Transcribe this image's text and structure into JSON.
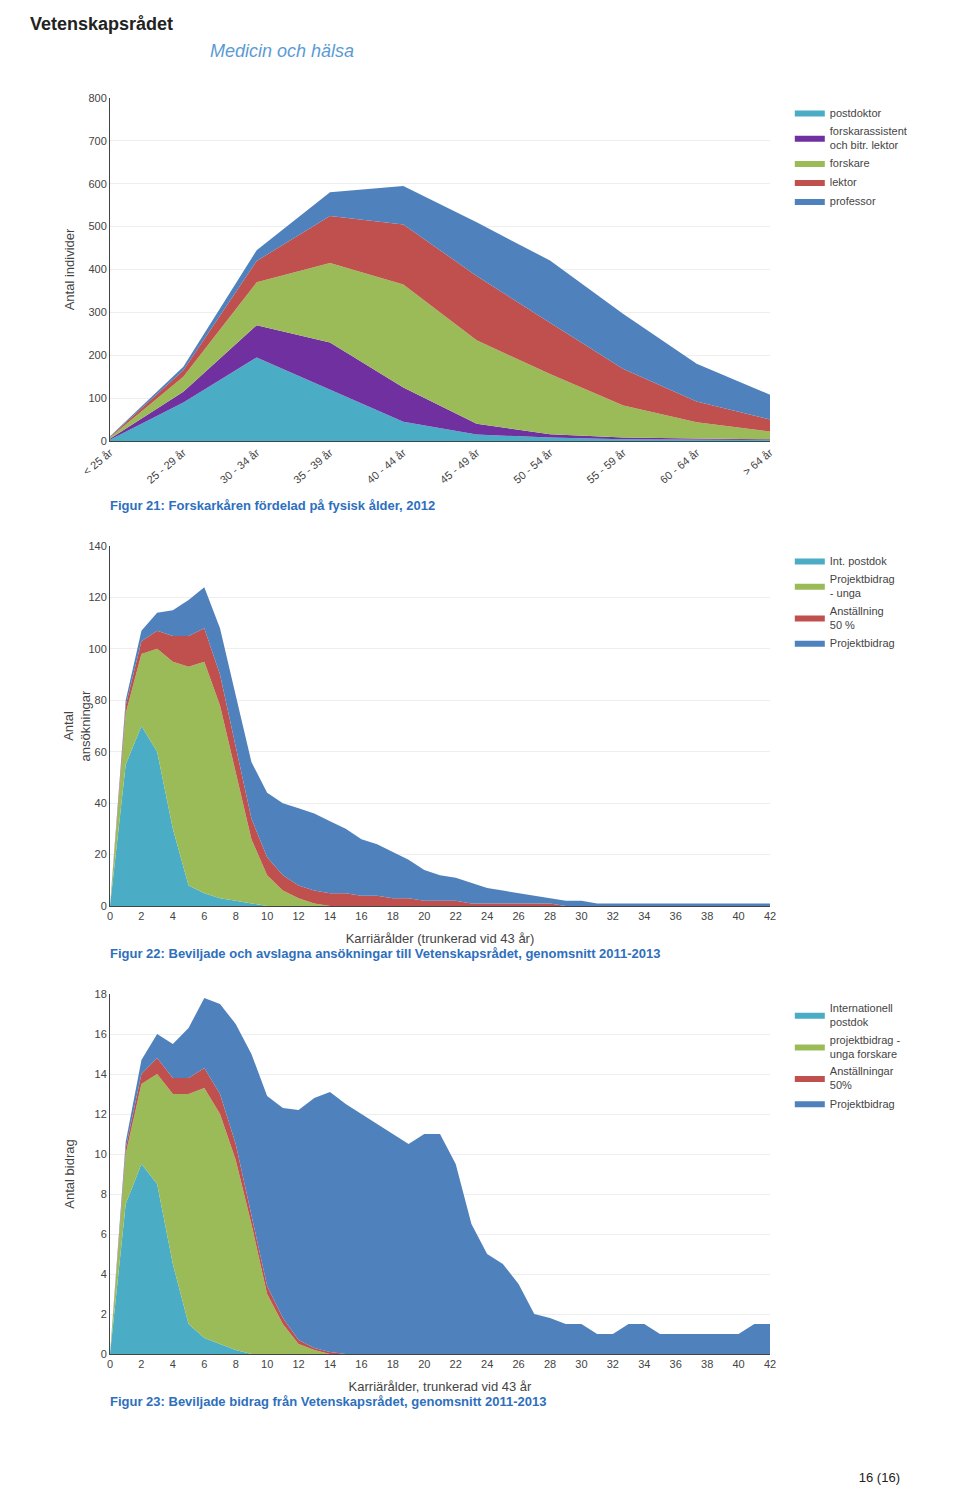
{
  "title": "Medicin och hälsa",
  "annotations": [
    "Vetenskapsrådet",
    "16 (16)"
  ],
  "chart_data": [
    {
      "type": "area",
      "stacked": true,
      "grid": true,
      "legend": "right",
      "title": "Figur 21: Forskarkåren fördelad på fysisk ålder, 2012",
      "ylabel": "Antal individer",
      "categories": [
        "< 25 år",
        "25 - 29 år",
        "30 - 34 år",
        "35 - 39 år",
        "40 - 44 år",
        "45 - 49 år",
        "50 - 54 år",
        "55 - 59 år",
        "60 - 64 år",
        "> 64 år"
      ],
      "ylim": [
        0,
        800
      ],
      "yticks": [
        0,
        100,
        200,
        300,
        400,
        500,
        600,
        700,
        800
      ],
      "series": [
        {
          "name": "postdoktor",
          "color": "#4BACC6",
          "values": [
            3,
            90,
            195,
            120,
            45,
            15,
            8,
            4,
            3,
            2
          ]
        },
        {
          "name": "forskarassistent\noch bitr. lektor",
          "color": "#7030A0",
          "values": [
            2,
            25,
            75,
            110,
            80,
            25,
            8,
            4,
            3,
            2
          ]
        },
        {
          "name": "forskare",
          "color": "#9BBB59",
          "values": [
            3,
            35,
            100,
            185,
            240,
            195,
            140,
            75,
            38,
            18
          ]
        },
        {
          "name": "lektor",
          "color": "#C0504D",
          "values": [
            2,
            15,
            50,
            110,
            140,
            150,
            120,
            85,
            48,
            28
          ]
        },
        {
          "name": "professor",
          "color": "#4F81BD",
          "values": [
            1,
            8,
            25,
            55,
            90,
            125,
            145,
            128,
            88,
            58
          ]
        }
      ]
    },
    {
      "type": "area",
      "stacked": true,
      "grid": true,
      "legend": "right",
      "title": "Figur 22: Beviljade och avslagna ansökningar till Vetenskapsrådet, genomsnitt 2011-2013",
      "ylabel": "Antal\nansökningar",
      "xlabel": "Karriärålder (trunkerad vid 43 år)",
      "x": [
        0,
        1,
        2,
        3,
        4,
        5,
        6,
        7,
        8,
        9,
        10,
        11,
        12,
        13,
        14,
        15,
        16,
        17,
        18,
        19,
        20,
        21,
        22,
        23,
        24,
        25,
        26,
        27,
        28,
        29,
        30,
        31,
        32,
        33,
        34,
        35,
        36,
        37,
        38,
        39,
        40,
        41,
        42
      ],
      "xlim": [
        0,
        42
      ],
      "xticks": [
        0,
        2,
        4,
        6,
        8,
        10,
        12,
        14,
        16,
        18,
        20,
        22,
        24,
        26,
        28,
        30,
        32,
        34,
        36,
        38,
        40,
        42
      ],
      "ylim": [
        0,
        140
      ],
      "yticks": [
        0,
        20,
        40,
        60,
        80,
        100,
        120,
        140
      ],
      "series": [
        {
          "name": "Int. postdok",
          "color": "#4BACC6",
          "values": [
            0,
            55,
            70,
            60,
            30,
            8,
            5,
            3,
            2,
            1,
            0,
            0,
            0,
            0,
            0,
            0,
            0,
            0,
            0,
            0,
            0,
            0,
            0,
            0,
            0,
            0,
            0,
            0,
            0,
            0,
            0,
            0,
            0,
            0,
            0,
            0,
            0,
            0,
            0,
            0,
            0,
            0,
            0
          ]
        },
        {
          "name": "Projektbidrag\n- unga",
          "color": "#9BBB59",
          "values": [
            0,
            20,
            28,
            40,
            65,
            85,
            90,
            75,
            50,
            25,
            12,
            6,
            3,
            1,
            0,
            0,
            0,
            0,
            0,
            0,
            0,
            0,
            0,
            0,
            0,
            0,
            0,
            0,
            0,
            0,
            0,
            0,
            0,
            0,
            0,
            0,
            0,
            0,
            0,
            0,
            0,
            0,
            0
          ]
        },
        {
          "name": "Anställning\n50 %",
          "color": "#C0504D",
          "values": [
            0,
            3,
            5,
            7,
            10,
            12,
            13,
            12,
            10,
            8,
            7,
            6,
            5,
            5,
            5,
            5,
            4,
            4,
            3,
            3,
            2,
            2,
            2,
            1,
            1,
            1,
            1,
            1,
            1,
            0,
            0,
            0,
            0,
            0,
            0,
            0,
            0,
            0,
            0,
            0,
            0,
            0,
            0
          ]
        },
        {
          "name": "Projektbidrag",
          "color": "#4F81BD",
          "values": [
            0,
            2,
            4,
            7,
            10,
            14,
            16,
            18,
            20,
            22,
            25,
            28,
            30,
            30,
            28,
            25,
            22,
            20,
            18,
            15,
            12,
            10,
            9,
            8,
            6,
            5,
            4,
            3,
            2,
            2,
            2,
            1,
            1,
            1,
            1,
            1,
            1,
            1,
            1,
            1,
            1,
            1,
            1
          ]
        }
      ]
    },
    {
      "type": "area",
      "stacked": true,
      "grid": true,
      "legend": "right",
      "title": "Figur 23: Beviljade bidrag från Vetenskapsrådet, genomsnitt 2011-2013",
      "ylabel": "Antal bidrag",
      "xlabel": "Karriärålder, trunkerad vid 43 år",
      "x": [
        0,
        1,
        2,
        3,
        4,
        5,
        6,
        7,
        8,
        9,
        10,
        11,
        12,
        13,
        14,
        15,
        16,
        17,
        18,
        19,
        20,
        21,
        22,
        23,
        24,
        25,
        26,
        27,
        28,
        29,
        30,
        31,
        32,
        33,
        34,
        35,
        36,
        37,
        38,
        39,
        40,
        41,
        42
      ],
      "xlim": [
        0,
        42
      ],
      "xticks": [
        0,
        2,
        4,
        6,
        8,
        10,
        12,
        14,
        16,
        18,
        20,
        22,
        24,
        26,
        28,
        30,
        32,
        34,
        36,
        38,
        40,
        42
      ],
      "ylim": [
        0,
        18
      ],
      "yticks": [
        0,
        2,
        4,
        6,
        8,
        10,
        12,
        14,
        16,
        18
      ],
      "series": [
        {
          "name": "Internationell\npostdok",
          "color": "#4BACC6",
          "values": [
            0,
            7.5,
            9.5,
            8.5,
            4.5,
            1.5,
            0.8,
            0.5,
            0.2,
            0,
            0,
            0,
            0,
            0,
            0,
            0,
            0,
            0,
            0,
            0,
            0,
            0,
            0,
            0,
            0,
            0,
            0,
            0,
            0,
            0,
            0,
            0,
            0,
            0,
            0,
            0,
            0,
            0,
            0,
            0,
            0,
            0,
            0
          ]
        },
        {
          "name": "projektbidrag -\nunga forskare",
          "color": "#9BBB59",
          "values": [
            0,
            2.5,
            4.0,
            5.5,
            8.5,
            11.5,
            12.5,
            11.5,
            9.5,
            6.5,
            3.0,
            1.5,
            0.5,
            0.2,
            0,
            0,
            0,
            0,
            0,
            0,
            0,
            0,
            0,
            0,
            0,
            0,
            0,
            0,
            0,
            0,
            0,
            0,
            0,
            0,
            0,
            0,
            0,
            0,
            0,
            0,
            0,
            0,
            0
          ]
        },
        {
          "name": "Anställningar\n50%",
          "color": "#C0504D",
          "values": [
            0,
            0.3,
            0.5,
            0.8,
            0.8,
            0.8,
            1.0,
            1.0,
            0.8,
            0.5,
            0.4,
            0.3,
            0.2,
            0.1,
            0.1,
            0,
            0,
            0,
            0,
            0,
            0,
            0,
            0,
            0,
            0,
            0,
            0,
            0,
            0,
            0,
            0,
            0,
            0,
            0,
            0,
            0,
            0,
            0,
            0,
            0,
            0,
            0,
            0
          ]
        },
        {
          "name": "Projektbidrag",
          "color": "#4F81BD",
          "values": [
            0,
            0.3,
            0.7,
            1.2,
            1.7,
            2.5,
            3.5,
            4.5,
            6.0,
            8.0,
            9.5,
            10.5,
            11.5,
            12.5,
            13.0,
            12.5,
            12.0,
            11.5,
            11.0,
            10.5,
            11.0,
            11.0,
            9.5,
            6.5,
            5.0,
            4.5,
            3.5,
            2.0,
            1.8,
            1.5,
            1.5,
            1.0,
            1.0,
            1.5,
            1.5,
            1.0,
            1.0,
            1.0,
            1.0,
            1.0,
            1.0,
            1.5,
            1.5
          ]
        }
      ]
    }
  ]
}
